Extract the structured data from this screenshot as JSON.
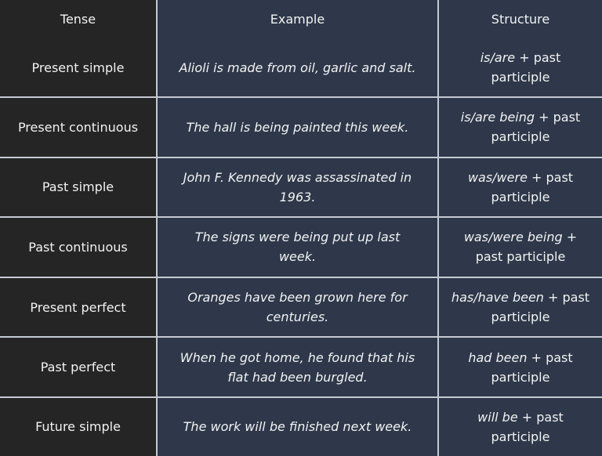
{
  "headers": [
    "Tense",
    "Example",
    "Structure"
  ],
  "rows": [
    {
      "tense": "Present simple",
      "example": "Alioli is made from oil, garlic and salt.",
      "structure_italic": "is/are",
      "structure_rest": " + past participle"
    },
    {
      "tense": "Present continuous",
      "example": "The hall is being painted this week.",
      "structure_italic": "is/are being",
      "structure_rest": " + past participle"
    },
    {
      "tense": "Past simple",
      "example": "John F. Kennedy was assassinated in 1963.",
      "structure_italic": "was/were",
      "structure_rest": " + past participle"
    },
    {
      "tense": "Past continuous",
      "example": "The signs were being put up last week.",
      "structure_italic": "was/were being",
      "structure_rest": " + past participle"
    },
    {
      "tense": "Present perfect",
      "example": "Oranges have been grown here for centuries.",
      "structure_italic": "has/have been",
      "structure_rest": " + past participle"
    },
    {
      "tense": "Past perfect",
      "example": "When he got home, he found that his flat had been burgled.",
      "structure_italic": "had been",
      "structure_rest": " + past participle"
    },
    {
      "tense": "Future simple",
      "example": "The work will be finished next week.",
      "structure_italic": "will be",
      "structure_rest": " + past participle"
    }
  ],
  "colors": {
    "header_col_bg": "#252525",
    "cell_bg": "#2e384a",
    "grid": "#c6cad2",
    "text": "#f2f2f2"
  }
}
